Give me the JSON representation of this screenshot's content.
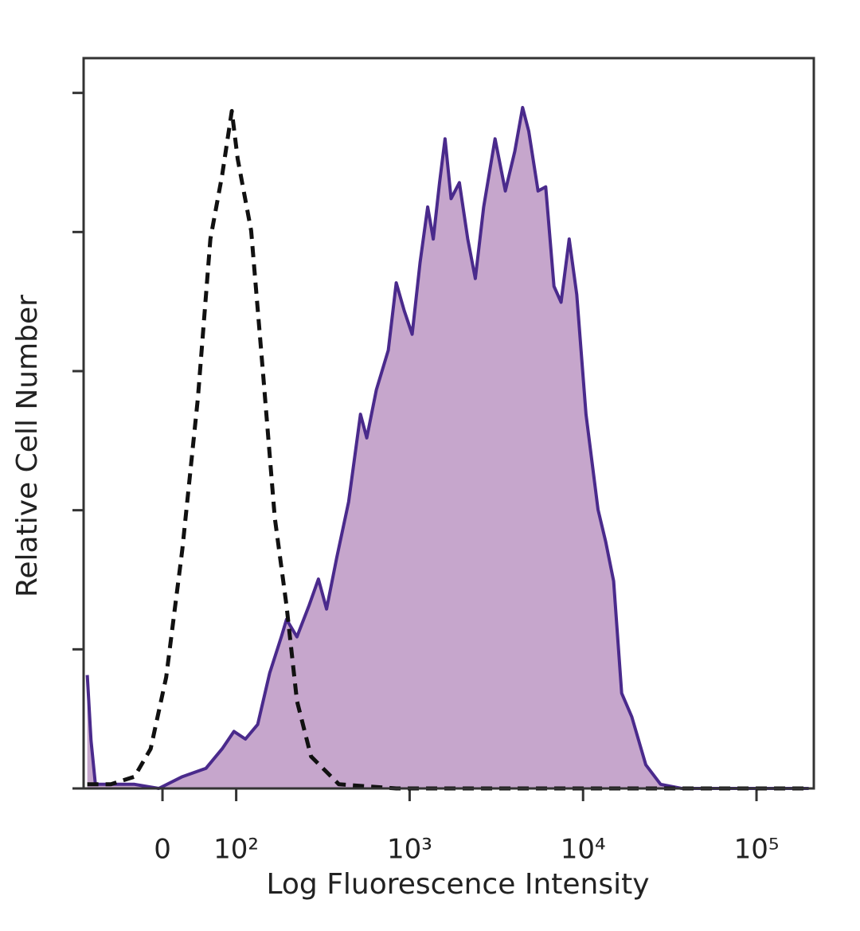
{
  "chart_data": {
    "type": "histogram-overlay",
    "x_label": "Log Fluorescence Intensity",
    "y_label": "Relative Cell Number",
    "xscale": "biexponential",
    "xlim": [
      -107,
      214000
    ],
    "xticks": [
      0,
      {
        "value": 100,
        "label": "10²"
      },
      {
        "value": 1000,
        "label": "10³"
      },
      {
        "value": 10000,
        "label": "10⁴"
      },
      {
        "value": 100000,
        "label": "10⁵"
      }
    ],
    "ylim": [
      0,
      105
    ],
    "yticks": [
      0,
      20,
      40,
      60,
      80,
      100
    ],
    "series": [
      {
        "color": "#4a2a8c",
        "fill": "#c6a6cc",
        "dashed": false,
        "x": [
          -102,
          -97,
          -91,
          -70,
          -38,
          -5,
          27,
          59,
          81,
          97,
          113,
          133,
          156,
          182,
          195,
          224,
          263,
          298,
          332,
          380,
          445,
          521,
          566,
          643,
          753,
          837,
          930,
          1034,
          1148,
          1271,
          1368,
          1488,
          1600,
          1735,
          1936,
          2162,
          2391,
          2671,
          3107,
          3563,
          4040,
          4480,
          4860,
          5500,
          6090,
          6800,
          7470,
          8320,
          9200,
          10400,
          12200,
          13500,
          15000,
          16700,
          19100,
          23000,
          28000,
          37000,
          200000
        ],
        "values": [
          16.3,
          6.9,
          0.6,
          0.6,
          0.6,
          0,
          1.7,
          2.9,
          5.7,
          8.2,
          7.1,
          9.2,
          16.6,
          21.8,
          24.3,
          21.8,
          26.3,
          30.1,
          25.8,
          33.2,
          41.2,
          53.8,
          50.4,
          57.3,
          63.0,
          72.7,
          68.7,
          65.3,
          75.6,
          83.6,
          79.0,
          87.1,
          93.4,
          84.8,
          87.1,
          79.0,
          73.3,
          83.6,
          93.4,
          85.9,
          91.6,
          97.9,
          94.5,
          85.9,
          86.5,
          72.2,
          69.9,
          79.0,
          71.0,
          53.8,
          40.1,
          35.5,
          29.8,
          13.7,
          10.3,
          3.4,
          0.6,
          0,
          0
        ]
      },
      {
        "color": "#111111",
        "dashed": true,
        "x": [
          -102,
          -70,
          -38,
          -16,
          5,
          27,
          48,
          65,
          81,
          94,
          102,
          122,
          143,
          167,
          195,
          224,
          270,
          391,
          837,
          200000
        ],
        "values": [
          0.6,
          0.6,
          1.7,
          5.7,
          16.0,
          34.4,
          56.1,
          79.0,
          88.2,
          97.4,
          90.5,
          80.2,
          59.6,
          38.9,
          26.3,
          12.6,
          4.6,
          0.6,
          0,
          0
        ]
      }
    ]
  }
}
